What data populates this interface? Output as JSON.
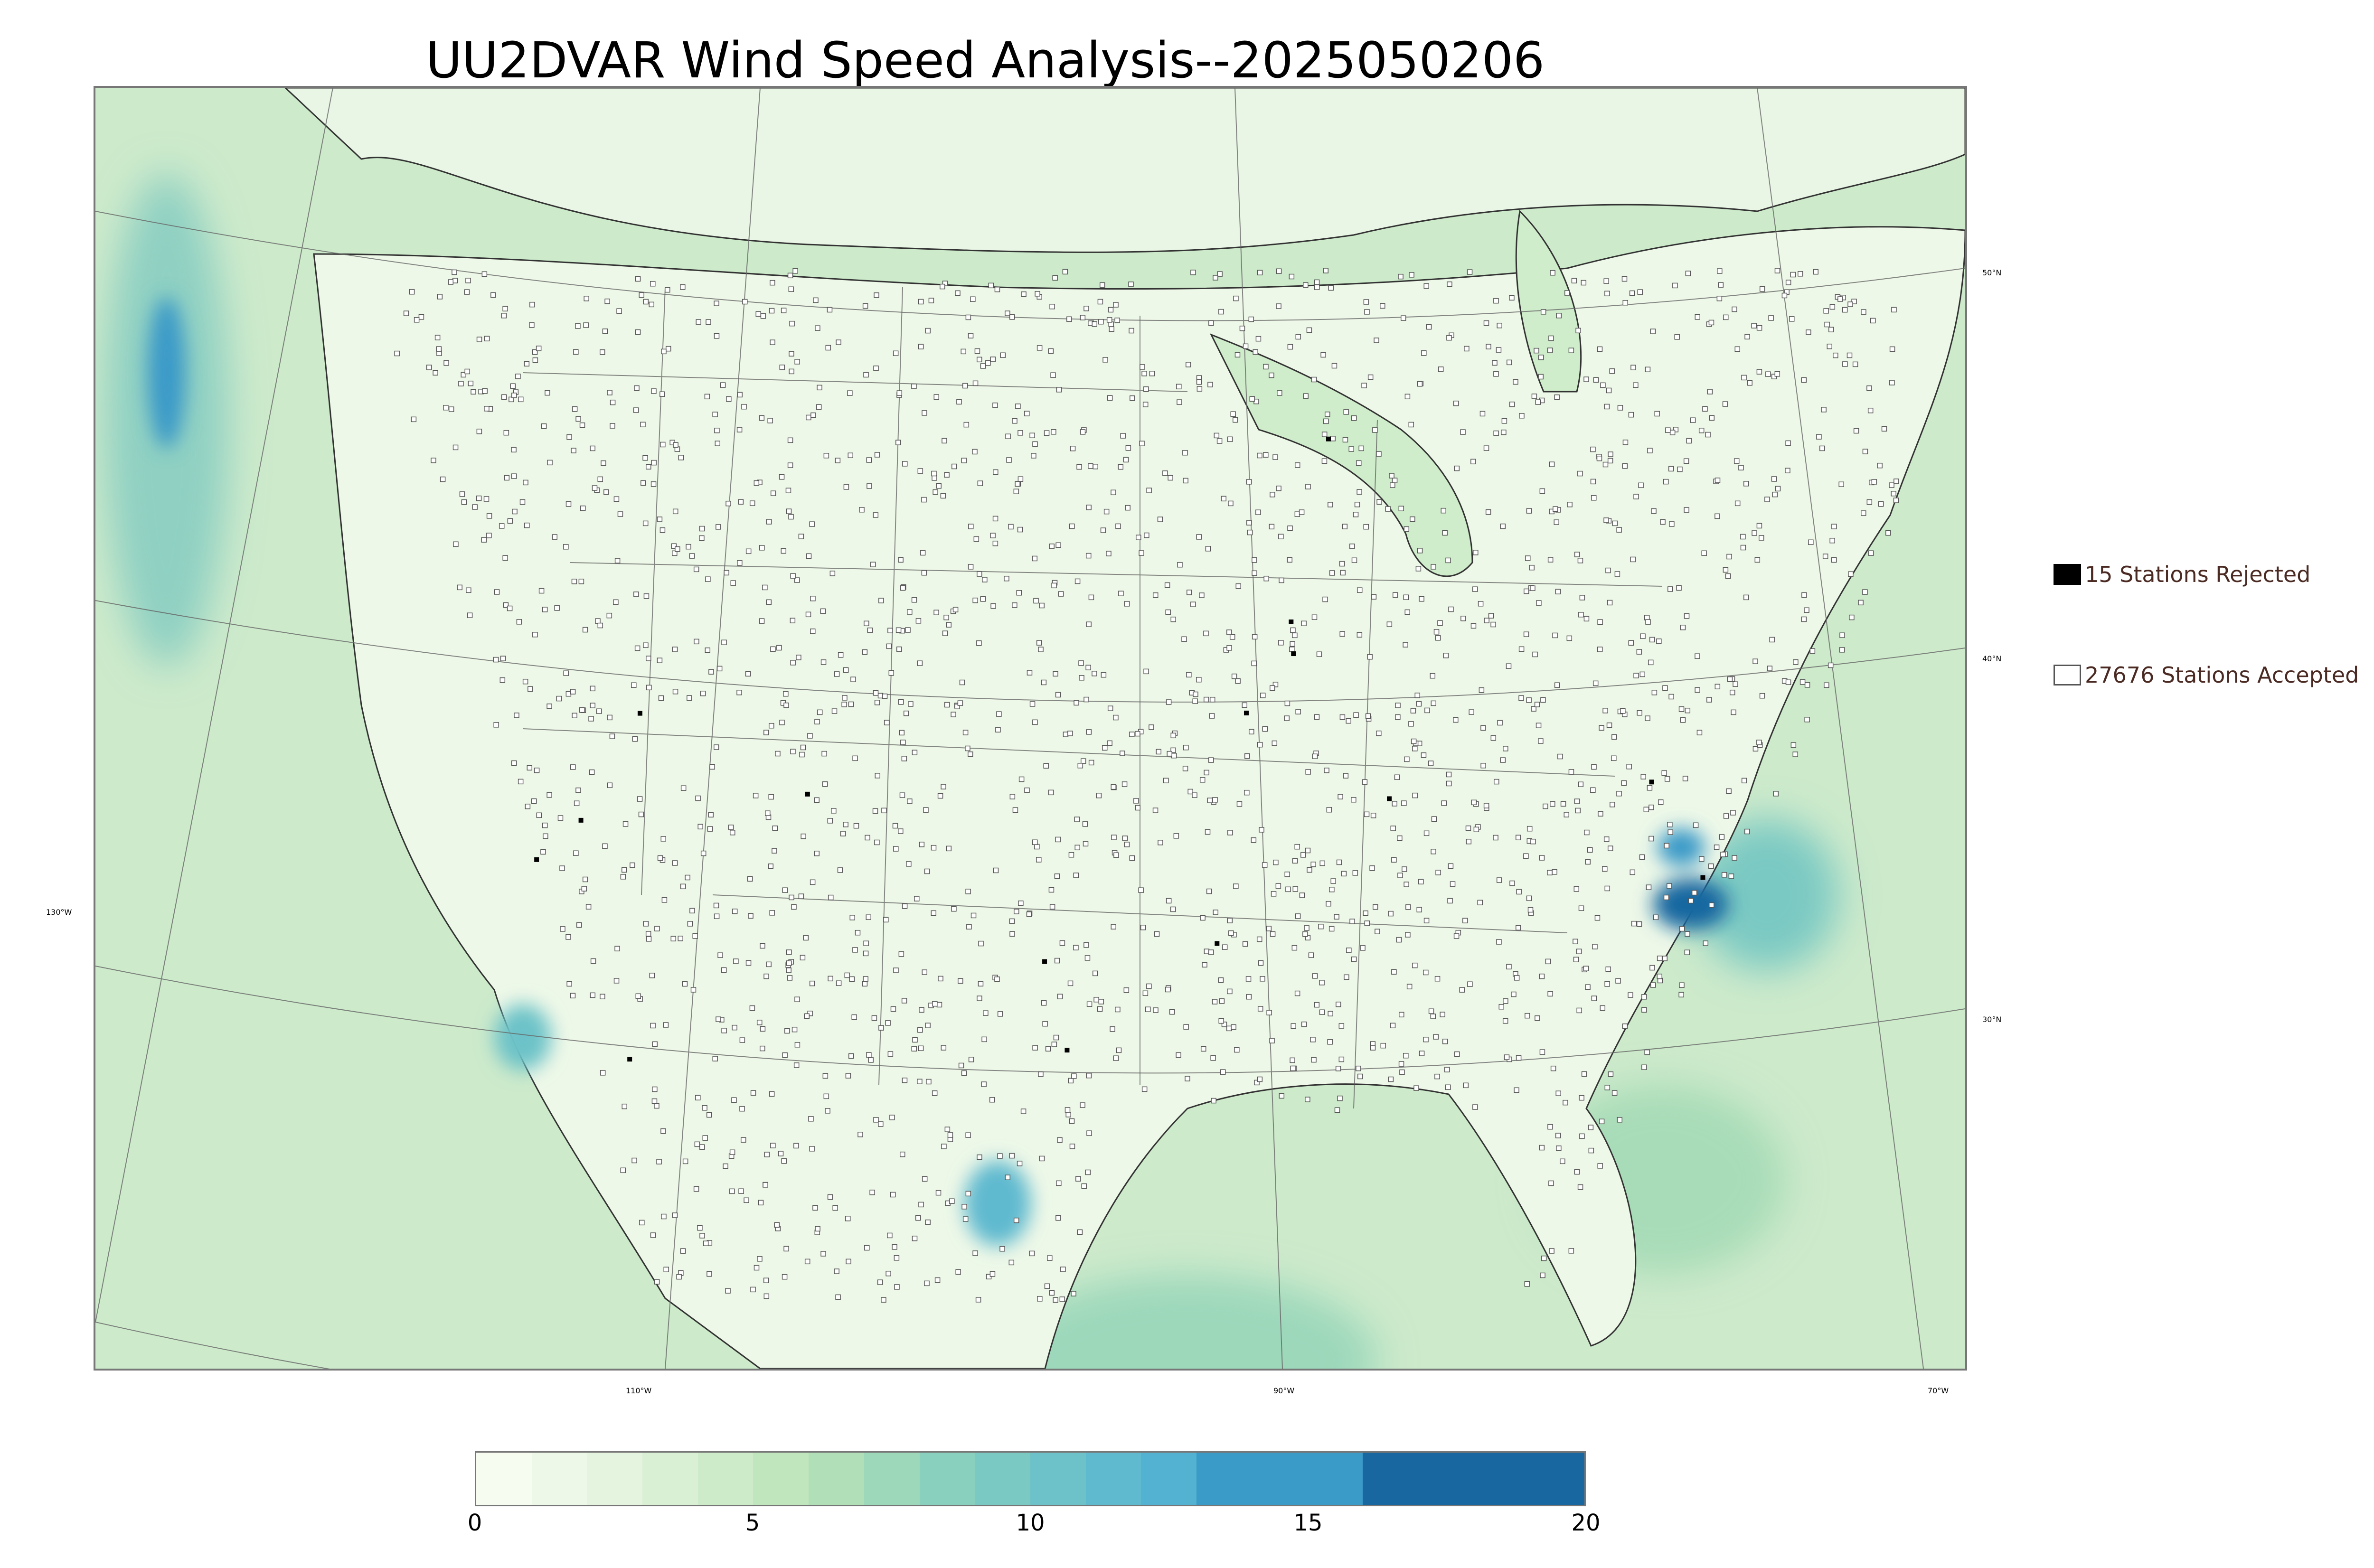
{
  "title": "UU2DVAR Wind Speed Analysis--2025050206",
  "map": {
    "lat_labels": [
      "50°N",
      "40°N",
      "30°N"
    ],
    "lon_labels": [
      "130°W",
      "110°W",
      "90°W",
      "70°W"
    ],
    "land_color": "#e9f6e5",
    "ocean_color": "#cfeccb",
    "high_wind_color": "#3b94c4",
    "border_color": "#555555",
    "accepted_station_color": "#ffffff",
    "rejected_station_color": "#000000"
  },
  "legend": {
    "rejected": {
      "count": 15,
      "label": "15 Stations Rejected"
    },
    "accepted": {
      "count": 27676,
      "label": "27676 Stations Accepted"
    }
  },
  "colorbar": {
    "range": [
      0,
      20
    ],
    "ticks": [
      "0",
      "5",
      "10",
      "15",
      "20"
    ],
    "levels": [
      {
        "from": 0,
        "to": 1,
        "color": "#f7fcf0"
      },
      {
        "from": 1,
        "to": 2,
        "color": "#eef8e8"
      },
      {
        "from": 2,
        "to": 3,
        "color": "#e4f4df"
      },
      {
        "from": 3,
        "to": 4,
        "color": "#d9f0d4"
      },
      {
        "from": 4,
        "to": 5,
        "color": "#cdebc8"
      },
      {
        "from": 5,
        "to": 6,
        "color": "#c0e6bd"
      },
      {
        "from": 6,
        "to": 7,
        "color": "#b0dfb8"
      },
      {
        "from": 7,
        "to": 8,
        "color": "#9dd8bb"
      },
      {
        "from": 8,
        "to": 9,
        "color": "#8ad0be"
      },
      {
        "from": 9,
        "to": 10,
        "color": "#7ac9c3"
      },
      {
        "from": 10,
        "to": 11,
        "color": "#6cc2c8"
      },
      {
        "from": 11,
        "to": 12,
        "color": "#5fb9cf"
      },
      {
        "from": 12,
        "to": 13,
        "color": "#53b1d1"
      },
      {
        "from": 13,
        "to": 16,
        "color": "#3a9ac8"
      },
      {
        "from": 16,
        "to": 20,
        "color": "#1967a0"
      }
    ]
  }
}
